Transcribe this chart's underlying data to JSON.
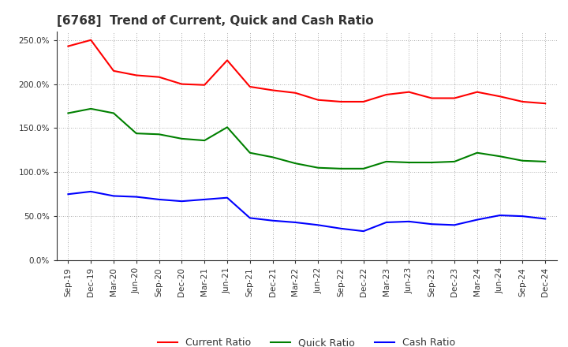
{
  "title": "[6768]  Trend of Current, Quick and Cash Ratio",
  "labels": [
    "Sep-19",
    "Dec-19",
    "Mar-20",
    "Jun-20",
    "Sep-20",
    "Dec-20",
    "Mar-21",
    "Jun-21",
    "Sep-21",
    "Dec-21",
    "Mar-22",
    "Jun-22",
    "Sep-22",
    "Dec-22",
    "Mar-23",
    "Jun-23",
    "Sep-23",
    "Dec-23",
    "Mar-24",
    "Jun-24",
    "Sep-24",
    "Dec-24"
  ],
  "current_ratio": [
    2.43,
    2.5,
    2.15,
    2.1,
    2.08,
    2.0,
    1.99,
    2.27,
    1.97,
    1.93,
    1.9,
    1.82,
    1.8,
    1.8,
    1.88,
    1.91,
    1.84,
    1.84,
    1.91,
    1.86,
    1.8,
    1.78
  ],
  "quick_ratio": [
    1.67,
    1.72,
    1.67,
    1.44,
    1.43,
    1.38,
    1.36,
    1.51,
    1.22,
    1.17,
    1.1,
    1.05,
    1.04,
    1.04,
    1.12,
    1.11,
    1.11,
    1.12,
    1.22,
    1.18,
    1.13,
    1.12
  ],
  "cash_ratio": [
    0.75,
    0.78,
    0.73,
    0.72,
    0.69,
    0.67,
    0.69,
    0.71,
    0.48,
    0.45,
    0.43,
    0.4,
    0.36,
    0.33,
    0.43,
    0.44,
    0.41,
    0.4,
    0.46,
    0.51,
    0.5,
    0.47
  ],
  "current_color": "#ff0000",
  "quick_color": "#008000",
  "cash_color": "#0000ff",
  "background_color": "#ffffff",
  "grid_color": "#999999",
  "ylim": [
    0.0,
    2.6
  ],
  "yticks": [
    0.0,
    0.5,
    1.0,
    1.5,
    2.0,
    2.5
  ],
  "ytick_labels": [
    "0.0%",
    "50.0%",
    "100.0%",
    "150.0%",
    "200.0%",
    "250.0%"
  ],
  "title_fontsize": 11,
  "tick_fontsize": 7.5,
  "legend_fontsize": 9
}
